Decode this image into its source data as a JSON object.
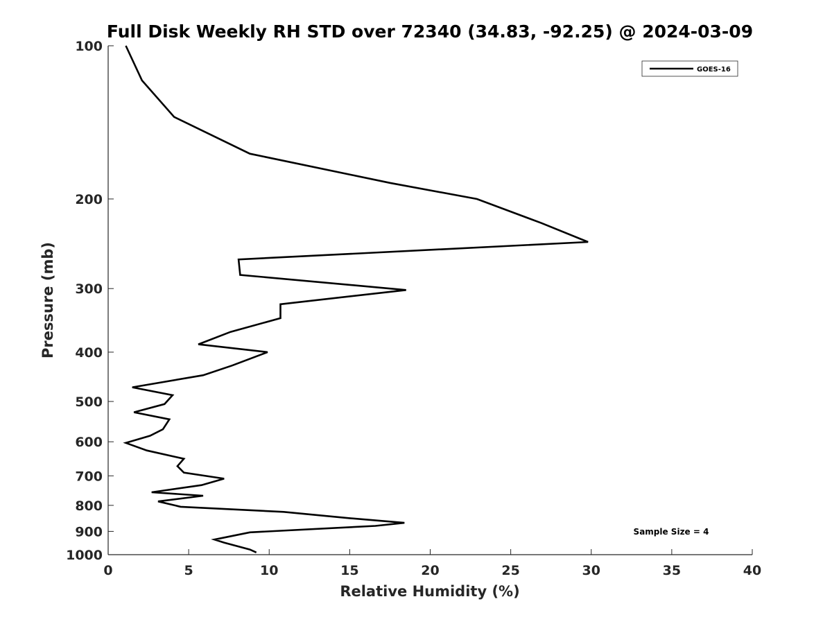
{
  "chart_data": {
    "type": "line",
    "title": "Full Disk Weekly RH STD over 72340 (34.83, -92.25) @ 2024-03-09",
    "xlabel": "Relative Humidity (%)",
    "ylabel": "Pressure (mb)",
    "xlim": [
      0,
      40
    ],
    "ylim": [
      100,
      1000
    ],
    "y_scale": "log",
    "y_reversed": true,
    "xticks": [
      0,
      5,
      10,
      15,
      20,
      25,
      30,
      35,
      40
    ],
    "yticks": [
      100,
      200,
      300,
      400,
      500,
      600,
      700,
      800,
      900,
      1000
    ],
    "grid": false,
    "legend_position": "top-right",
    "annotation": "Sample Size = 4",
    "series": [
      {
        "name": "GOES-16",
        "color": "#000000",
        "x": [
          1.1,
          2.1,
          4.1,
          8.8,
          17.5,
          22.9,
          26.9,
          29.8,
          8.1,
          8.2,
          18.5,
          10.7,
          10.7,
          7.6,
          5.6,
          9.9,
          7.7,
          5.9,
          1.5,
          4.0,
          3.5,
          1.6,
          3.8,
          3.4,
          2.6,
          1.1,
          2.4,
          4.7,
          4.3,
          4.7,
          7.2,
          5.8,
          2.7,
          5.9,
          3.1,
          4.5,
          10.9,
          15.0,
          18.4,
          16.6,
          8.8,
          6.6,
          7.2,
          8.8,
          9.2
        ],
        "y": [
          100,
          117,
          138,
          163,
          186,
          200,
          223,
          243,
          263,
          282,
          302,
          322,
          343,
          365,
          386,
          400,
          425,
          444,
          469,
          486,
          506,
          525,
          542,
          567,
          584,
          603,
          624,
          648,
          670,
          690,
          709,
          730,
          754,
          766,
          786,
          805,
          824,
          848,
          866,
          878,
          904,
          934,
          947,
          977,
          990
        ]
      }
    ]
  }
}
